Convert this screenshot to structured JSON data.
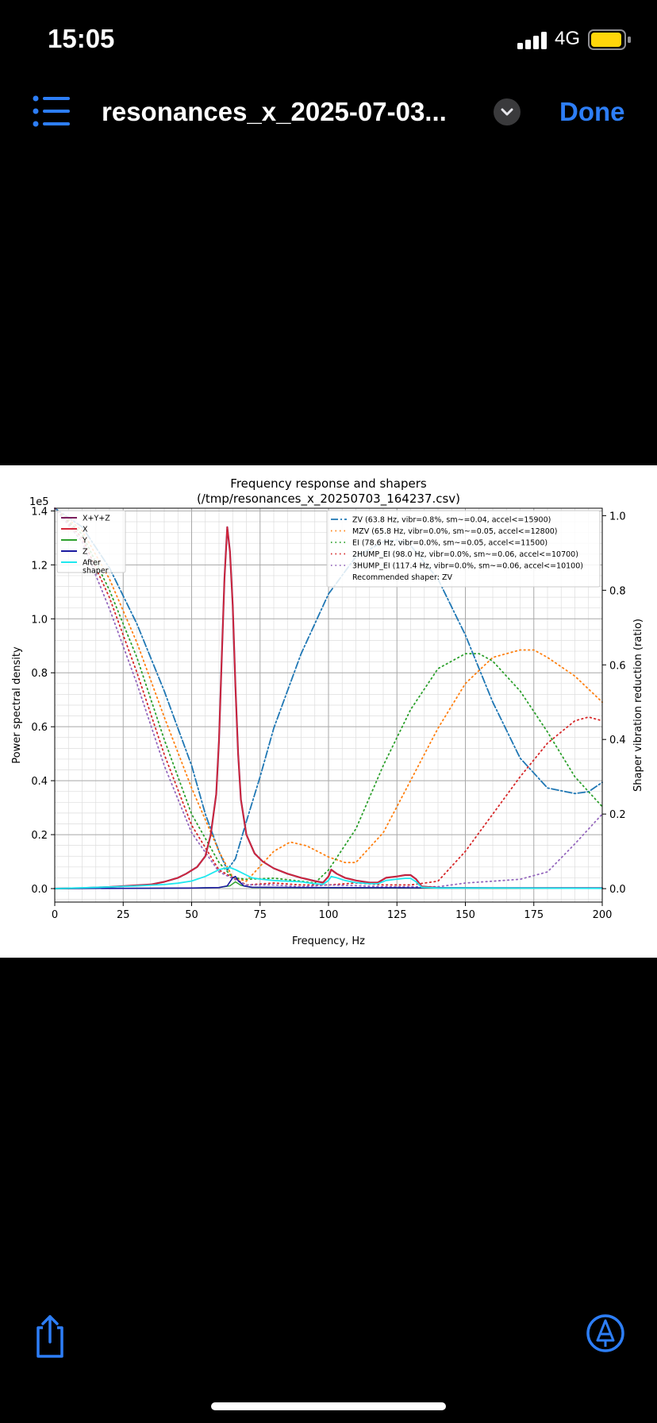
{
  "status": {
    "time": "15:05",
    "network": "4G"
  },
  "nav": {
    "title": "resonances_x_2025-07-03...",
    "done_label": "Done"
  },
  "chart_data": {
    "type": "line",
    "title": "Frequency response and shapers",
    "subtitle": "(/tmp/resonances_x_20250703_164237.csv)",
    "xlabel": "Frequency, Hz",
    "ylabel": "Power spectral density",
    "y2label": "Shaper vibration reduction (ratio)",
    "y_multiplier": "1e5",
    "xlim": [
      0,
      200
    ],
    "ylim": [
      -0.05,
      1.41
    ],
    "y2lim": [
      -0.036,
      1.02
    ],
    "x_ticks": [
      "0",
      "25",
      "50",
      "75",
      "100",
      "125",
      "150",
      "175",
      "200"
    ],
    "y_ticks": [
      "0.0",
      "0.2",
      "0.4",
      "0.6",
      "0.8",
      "1.0",
      "1.2",
      "1.4"
    ],
    "y2_ticks": [
      "0.0",
      "0.2",
      "0.4",
      "0.6",
      "0.8",
      "1.0"
    ],
    "grid": true,
    "legend_left": "top-left",
    "legend_right": "top-right",
    "recommended": "Recommended shaper: ZV",
    "psd_series": [
      {
        "name": "X+Y+Z",
        "color": "#7b1f5e",
        "dash": "",
        "width": 2.2,
        "points": [
          [
            0,
            0.0
          ],
          [
            10,
            0.002
          ],
          [
            20,
            0.006
          ],
          [
            30,
            0.012
          ],
          [
            35,
            0.015
          ],
          [
            40,
            0.025
          ],
          [
            45,
            0.04
          ],
          [
            48,
            0.055
          ],
          [
            52,
            0.08
          ],
          [
            55,
            0.12
          ],
          [
            57,
            0.2
          ],
          [
            59,
            0.35
          ],
          [
            60,
            0.55
          ],
          [
            61,
            0.85
          ],
          [
            62,
            1.15
          ],
          [
            63,
            1.34
          ],
          [
            64,
            1.25
          ],
          [
            65,
            1.05
          ],
          [
            66,
            0.75
          ],
          [
            67,
            0.5
          ],
          [
            68,
            0.33
          ],
          [
            70,
            0.2
          ],
          [
            73,
            0.13
          ],
          [
            76,
            0.1
          ],
          [
            80,
            0.075
          ],
          [
            85,
            0.055
          ],
          [
            90,
            0.04
          ],
          [
            95,
            0.028
          ],
          [
            98,
            0.022
          ],
          [
            100,
            0.045
          ],
          [
            101,
            0.07
          ],
          [
            103,
            0.055
          ],
          [
            106,
            0.04
          ],
          [
            110,
            0.03
          ],
          [
            115,
            0.022
          ],
          [
            118,
            0.022
          ],
          [
            121,
            0.04
          ],
          [
            125,
            0.045
          ],
          [
            128,
            0.05
          ],
          [
            130,
            0.05
          ],
          [
            132,
            0.035
          ],
          [
            134,
            0.008
          ],
          [
            140,
            0.003
          ],
          [
            160,
            0.002
          ],
          [
            200,
            0.002
          ]
        ]
      },
      {
        "name": "X",
        "color": "#d62739",
        "dash": "",
        "width": 1.6,
        "points": [
          [
            0,
            0.0
          ],
          [
            10,
            0.002
          ],
          [
            20,
            0.006
          ],
          [
            30,
            0.012
          ],
          [
            35,
            0.015
          ],
          [
            40,
            0.025
          ],
          [
            45,
            0.04
          ],
          [
            48,
            0.055
          ],
          [
            52,
            0.08
          ],
          [
            55,
            0.12
          ],
          [
            57,
            0.2
          ],
          [
            59,
            0.35
          ],
          [
            60,
            0.55
          ],
          [
            61,
            0.85
          ],
          [
            62,
            1.15
          ],
          [
            63,
            1.34
          ],
          [
            64,
            1.25
          ],
          [
            65,
            1.05
          ],
          [
            66,
            0.75
          ],
          [
            67,
            0.5
          ],
          [
            68,
            0.33
          ],
          [
            70,
            0.2
          ],
          [
            73,
            0.13
          ],
          [
            76,
            0.1
          ],
          [
            80,
            0.075
          ],
          [
            85,
            0.055
          ],
          [
            90,
            0.04
          ],
          [
            95,
            0.028
          ],
          [
            98,
            0.022
          ],
          [
            100,
            0.045
          ],
          [
            101,
            0.07
          ],
          [
            103,
            0.055
          ],
          [
            106,
            0.04
          ],
          [
            110,
            0.03
          ],
          [
            115,
            0.022
          ],
          [
            118,
            0.022
          ],
          [
            121,
            0.04
          ],
          [
            125,
            0.045
          ],
          [
            128,
            0.05
          ],
          [
            130,
            0.05
          ],
          [
            132,
            0.035
          ],
          [
            134,
            0.008
          ],
          [
            140,
            0.003
          ],
          [
            160,
            0.002
          ],
          [
            200,
            0.002
          ]
        ]
      },
      {
        "name": "Y",
        "color": "#2ca02c",
        "dash": "",
        "width": 1.4,
        "points": [
          [
            0,
            0
          ],
          [
            50,
            0.002
          ],
          [
            60,
            0.004
          ],
          [
            64,
            0.01
          ],
          [
            66,
            0.025
          ],
          [
            68,
            0.012
          ],
          [
            72,
            0.004
          ],
          [
            90,
            0.003
          ],
          [
            130,
            0.002
          ],
          [
            200,
            0.001
          ]
        ]
      },
      {
        "name": "Z",
        "color": "#1a1aa0",
        "dash": "",
        "width": 1.6,
        "points": [
          [
            0,
            0
          ],
          [
            50,
            0.002
          ],
          [
            60,
            0.004
          ],
          [
            63,
            0.01
          ],
          [
            65,
            0.04
          ],
          [
            66,
            0.045
          ],
          [
            67,
            0.03
          ],
          [
            69,
            0.01
          ],
          [
            72,
            0.005
          ],
          [
            90,
            0.004
          ],
          [
            130,
            0.003
          ],
          [
            200,
            0.002
          ]
        ]
      },
      {
        "name": "After\nshaper",
        "color": "#1fe8ef",
        "dash": "",
        "width": 1.8,
        "points": [
          [
            0,
            0.0
          ],
          [
            10,
            0.003
          ],
          [
            20,
            0.006
          ],
          [
            30,
            0.01
          ],
          [
            40,
            0.015
          ],
          [
            45,
            0.02
          ],
          [
            50,
            0.028
          ],
          [
            55,
            0.045
          ],
          [
            58,
            0.06
          ],
          [
            60,
            0.07
          ],
          [
            62,
            0.075
          ],
          [
            64,
            0.078
          ],
          [
            66,
            0.07
          ],
          [
            68,
            0.06
          ],
          [
            70,
            0.05
          ],
          [
            72,
            0.04
          ],
          [
            75,
            0.035
          ],
          [
            80,
            0.03
          ],
          [
            90,
            0.025
          ],
          [
            95,
            0.018
          ],
          [
            98,
            0.016
          ],
          [
            100,
            0.03
          ],
          [
            101,
            0.045
          ],
          [
            103,
            0.04
          ],
          [
            106,
            0.03
          ],
          [
            110,
            0.022
          ],
          [
            115,
            0.018
          ],
          [
            118,
            0.018
          ],
          [
            121,
            0.03
          ],
          [
            125,
            0.035
          ],
          [
            128,
            0.038
          ],
          [
            130,
            0.038
          ],
          [
            132,
            0.025
          ],
          [
            134,
            0.005
          ],
          [
            140,
            0.002
          ],
          [
            160,
            0.002
          ],
          [
            200,
            0.001
          ]
        ]
      }
    ],
    "shaper_series": [
      {
        "name": "ZV (63.8 Hz, vibr=0.8%, sm~=0.04, accel<=15900)",
        "color": "#1f77b4",
        "dash": "9,3,2,3",
        "width": 1.8,
        "points": [
          [
            0,
            1.02
          ],
          [
            10,
            0.97
          ],
          [
            20,
            0.86
          ],
          [
            30,
            0.71
          ],
          [
            40,
            0.53
          ],
          [
            50,
            0.33
          ],
          [
            55,
            0.2
          ],
          [
            60,
            0.1
          ],
          [
            63,
            0.05
          ],
          [
            66,
            0.08
          ],
          [
            70,
            0.18
          ],
          [
            75,
            0.3
          ],
          [
            80,
            0.43
          ],
          [
            90,
            0.63
          ],
          [
            100,
            0.79
          ],
          [
            110,
            0.89
          ],
          [
            120,
            0.93
          ],
          [
            125,
            0.935
          ],
          [
            130,
            0.92
          ],
          [
            140,
            0.83
          ],
          [
            150,
            0.68
          ],
          [
            160,
            0.5
          ],
          [
            170,
            0.35
          ],
          [
            180,
            0.27
          ],
          [
            190,
            0.255
          ],
          [
            195,
            0.26
          ],
          [
            200,
            0.285
          ]
        ]
      },
      {
        "name": "MZV (65.8 Hz, vibr=0.0%, sm~=0.05, accel<=12800)",
        "color": "#ff7f0e",
        "dash": "1.5,4",
        "width": 1.8,
        "points": [
          [
            0,
            1.02
          ],
          [
            10,
            0.96
          ],
          [
            20,
            0.83
          ],
          [
            30,
            0.66
          ],
          [
            40,
            0.46
          ],
          [
            50,
            0.27
          ],
          [
            60,
            0.1
          ],
          [
            65,
            0.03
          ],
          [
            70,
            0.02
          ],
          [
            75,
            0.06
          ],
          [
            80,
            0.1
          ],
          [
            86,
            0.125
          ],
          [
            92,
            0.115
          ],
          [
            100,
            0.085
          ],
          [
            106,
            0.07
          ],
          [
            110,
            0.07
          ],
          [
            120,
            0.15
          ],
          [
            130,
            0.29
          ],
          [
            140,
            0.43
          ],
          [
            150,
            0.55
          ],
          [
            160,
            0.62
          ],
          [
            170,
            0.64
          ],
          [
            175,
            0.64
          ],
          [
            180,
            0.62
          ],
          [
            190,
            0.57
          ],
          [
            200,
            0.5
          ]
        ]
      },
      {
        "name": "EI (78.6 Hz, vibr=0.0%, sm~=0.05, accel<=11500)",
        "color": "#2ca02c",
        "dash": "1.5,4",
        "width": 1.8,
        "points": [
          [
            0,
            1.02
          ],
          [
            10,
            0.95
          ],
          [
            20,
            0.8
          ],
          [
            30,
            0.62
          ],
          [
            40,
            0.4
          ],
          [
            50,
            0.2
          ],
          [
            60,
            0.07
          ],
          [
            65,
            0.03
          ],
          [
            70,
            0.025
          ],
          [
            80,
            0.028
          ],
          [
            90,
            0.02
          ],
          [
            95,
            0.015
          ],
          [
            100,
            0.05
          ],
          [
            110,
            0.16
          ],
          [
            120,
            0.33
          ],
          [
            130,
            0.48
          ],
          [
            140,
            0.59
          ],
          [
            150,
            0.63
          ],
          [
            155,
            0.63
          ],
          [
            160,
            0.61
          ],
          [
            170,
            0.53
          ],
          [
            180,
            0.42
          ],
          [
            190,
            0.3
          ],
          [
            200,
            0.22
          ]
        ]
      },
      {
        "name": "2HUMP_EI (98.0 Hz, vibr=0.0%, sm~=0.06, accel<=10700)",
        "color": "#d62728",
        "dash": "1.5,4",
        "width": 1.8,
        "points": [
          [
            0,
            1.02
          ],
          [
            10,
            0.94
          ],
          [
            20,
            0.78
          ],
          [
            30,
            0.58
          ],
          [
            40,
            0.36
          ],
          [
            50,
            0.17
          ],
          [
            60,
            0.05
          ],
          [
            70,
            0.01
          ],
          [
            80,
            0.015
          ],
          [
            90,
            0.01
          ],
          [
            100,
            0.01
          ],
          [
            110,
            0.015
          ],
          [
            120,
            0.01
          ],
          [
            130,
            0.01
          ],
          [
            140,
            0.02
          ],
          [
            150,
            0.1
          ],
          [
            160,
            0.2
          ],
          [
            170,
            0.3
          ],
          [
            180,
            0.39
          ],
          [
            190,
            0.45
          ],
          [
            195,
            0.46
          ],
          [
            200,
            0.45
          ]
        ]
      },
      {
        "name": "3HUMP_EI (117.4 Hz, vibr=0.0%, sm~=0.06, accel<=10100)",
        "color": "#9467bd",
        "dash": "1.5,4",
        "width": 1.8,
        "points": [
          [
            0,
            1.02
          ],
          [
            10,
            0.93
          ],
          [
            20,
            0.75
          ],
          [
            30,
            0.55
          ],
          [
            40,
            0.33
          ],
          [
            50,
            0.15
          ],
          [
            60,
            0.045
          ],
          [
            70,
            0.01
          ],
          [
            80,
            0.01
          ],
          [
            90,
            0.005
          ],
          [
            100,
            0.01
          ],
          [
            110,
            0.008
          ],
          [
            120,
            0.005
          ],
          [
            130,
            0.005
          ],
          [
            140,
            0.005
          ],
          [
            150,
            0.015
          ],
          [
            160,
            0.02
          ],
          [
            170,
            0.025
          ],
          [
            180,
            0.045
          ],
          [
            190,
            0.12
          ],
          [
            200,
            0.2
          ]
        ]
      }
    ]
  }
}
